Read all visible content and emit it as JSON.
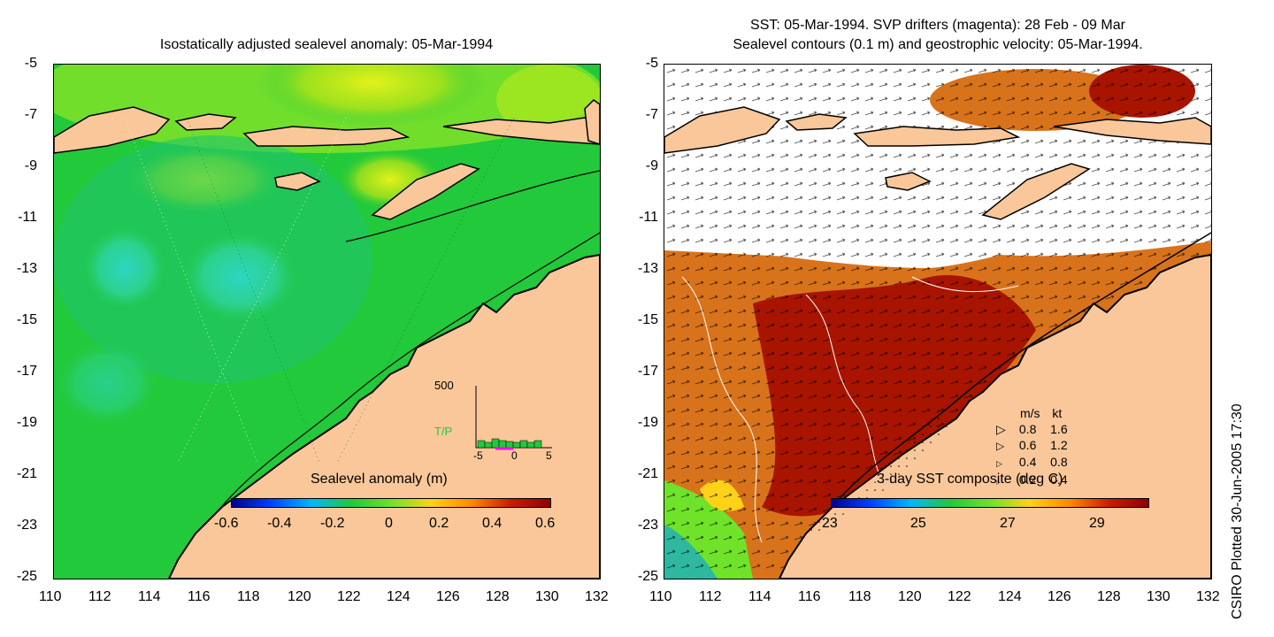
{
  "left_panel": {
    "title": "Isostatically adjusted sealevel anomaly: 05-Mar-1994",
    "colorbar": {
      "label": "Sealevel anomaly (m)",
      "ticks": [
        "-0.6",
        "-0.4",
        "-0.2",
        "0",
        "0.2",
        "0.4",
        "0.6"
      ]
    },
    "inset": {
      "ymax_label": "500",
      "series_label": "T/P",
      "x_ticks": [
        "-5",
        "0",
        "5"
      ]
    }
  },
  "right_panel": {
    "title_line1": "SST: 05-Mar-1994. SVP drifters (magenta): 28 Feb - 09 Mar",
    "title_line2": "Sealevel contours (0.1 m) and geostrophic velocity: 05-Mar-1994.",
    "colorbar": {
      "label": "3-day SST composite (deg C)",
      "ticks": [
        "23",
        "25",
        "27",
        "29"
      ]
    },
    "legend": {
      "header_ms": "m/s",
      "header_kt": "kt",
      "rows": [
        {
          "ms": "0.8",
          "kt": "1.6"
        },
        {
          "ms": "0.6",
          "kt": "1.2"
        },
        {
          "ms": "0.4",
          "kt": "0.8"
        },
        {
          "ms": "0.2",
          "kt": "0.4"
        }
      ]
    }
  },
  "axes": {
    "y_ticks": [
      "-5",
      "-7",
      "-9",
      "-11",
      "-13",
      "-15",
      "-17",
      "-19",
      "-21",
      "-23",
      "-25"
    ],
    "x_ticks": [
      "110",
      "112",
      "114",
      "116",
      "118",
      "120",
      "122",
      "124",
      "126",
      "128",
      "130",
      "132"
    ]
  },
  "side_label": "CSIRO Plotted 30-Jun-2005 17:30",
  "colors": {
    "land": "#f9c79a",
    "sea_green": "#22c93a",
    "sst_hot": "#a81400",
    "sst_orange": "#d8731b"
  }
}
